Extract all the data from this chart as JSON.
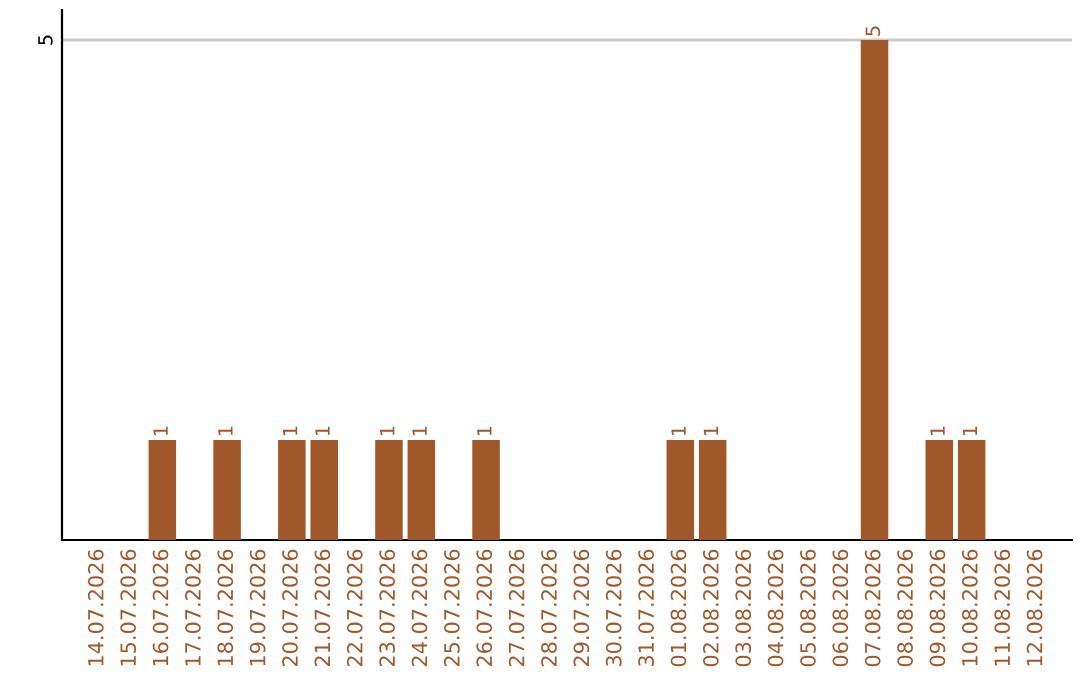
{
  "chart_data": {
    "type": "bar",
    "categories": [
      "14.07.2026",
      "15.07.2026",
      "16.07.2026",
      "17.07.2026",
      "18.07.2026",
      "19.07.2026",
      "20.07.2026",
      "21.07.2026",
      "22.07.2026",
      "23.07.2026",
      "24.07.2026",
      "25.07.2026",
      "26.07.2026",
      "27.07.2026",
      "28.07.2026",
      "29.07.2026",
      "30.07.2026",
      "31.07.2026",
      "01.08.2026",
      "02.08.2026",
      "03.08.2026",
      "04.08.2026",
      "05.08.2026",
      "06.08.2026",
      "07.08.2026",
      "08.08.2026",
      "09.08.2026",
      "10.08.2026",
      "11.08.2026",
      "12.08.2026"
    ],
    "values": [
      0,
      0,
      1,
      0,
      1,
      0,
      1,
      1,
      0,
      1,
      1,
      0,
      1,
      0,
      0,
      0,
      0,
      0,
      1,
      1,
      0,
      0,
      0,
      0,
      5,
      0,
      1,
      1,
      0,
      0
    ],
    "color": "#a0572a",
    "value_labels": [
      null,
      null,
      "1",
      null,
      "1",
      null,
      "1",
      "1",
      null,
      "1",
      "1",
      null,
      "1",
      null,
      null,
      null,
      null,
      null,
      "1",
      "1",
      null,
      null,
      null,
      null,
      "5",
      null,
      "1",
      "1",
      null,
      null
    ],
    "ylim": [
      0,
      5.3
    ],
    "yticks": [
      5
    ],
    "grid": "y"
  }
}
